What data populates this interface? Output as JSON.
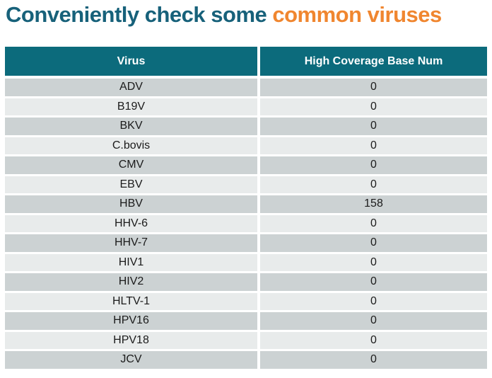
{
  "title": {
    "text_main": "Conveniently check some",
    "text_highlight": "common viruses"
  },
  "colors": {
    "title_teal": "#17617A",
    "title_orange": "#F0862F",
    "header_bg": "#0C6B7C",
    "header_text": "#FFFFFF",
    "row_dark": "#CCD2D3",
    "row_light": "#E8EBEB",
    "cell_text": "#1B1B1B"
  },
  "table": {
    "headers": [
      "Virus",
      "High Coverage Base Num"
    ],
    "rows": [
      {
        "virus": "ADV",
        "value": "0"
      },
      {
        "virus": "B19V",
        "value": "0"
      },
      {
        "virus": "BKV",
        "value": "0"
      },
      {
        "virus": "C.bovis",
        "value": "0"
      },
      {
        "virus": "CMV",
        "value": "0"
      },
      {
        "virus": "EBV",
        "value": "0"
      },
      {
        "virus": "HBV",
        "value": "158"
      },
      {
        "virus": "HHV-6",
        "value": "0"
      },
      {
        "virus": "HHV-7",
        "value": "0"
      },
      {
        "virus": "HIV1",
        "value": "0"
      },
      {
        "virus": "HIV2",
        "value": "0"
      },
      {
        "virus": "HLTV-1",
        "value": "0"
      },
      {
        "virus": "HPV16",
        "value": "0"
      },
      {
        "virus": "HPV18",
        "value": "0"
      },
      {
        "virus": "JCV",
        "value": "0"
      }
    ]
  }
}
